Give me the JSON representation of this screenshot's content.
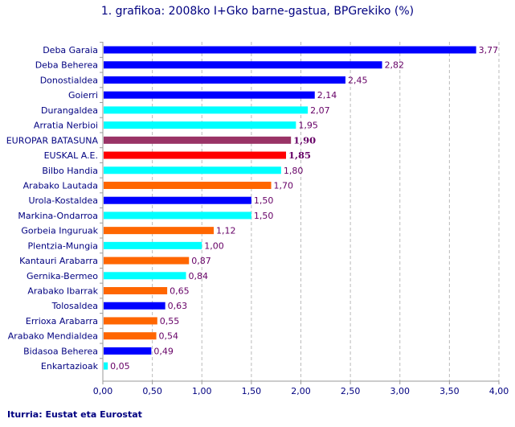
{
  "chart_data": {
    "type": "bar",
    "orientation": "horizontal",
    "title": "1. grafikoa: 2008ko I+Gko barne-gastua, BPGrekiko (%)",
    "source": "Iturria: Eustat eta Eurostat",
    "categories": [
      "Deba Garaia",
      "Deba Beherea",
      "Donostialdea",
      "Goierri",
      "Durangaldea",
      "Arratia Nerbioi",
      "EUROPAR BATASUNA",
      "EUSKAL A.E.",
      "Bilbo Handia",
      "Arabako Lautada",
      "Urola-Kostaldea",
      "Markina-Ondarroa",
      "Gorbeia Inguruak",
      "Plentzia-Mungia",
      "Kantauri Arabarra",
      "Gernika-Bermeo",
      "Arabako Ibarrak",
      "Tolosaldea",
      "Errioxa Arabarra",
      "Arabako Mendialdea",
      "Bidasoa Beherea",
      "Enkartazioak"
    ],
    "values": [
      3.77,
      2.82,
      2.45,
      2.14,
      2.07,
      1.95,
      1.9,
      1.85,
      1.8,
      1.7,
      1.5,
      1.5,
      1.12,
      1.0,
      0.87,
      0.84,
      0.65,
      0.63,
      0.55,
      0.54,
      0.49,
      0.05
    ],
    "value_labels": [
      "3,77",
      "2,82",
      "2,45",
      "2,14",
      "2,07",
      "1,95",
      "1,90",
      "1,85",
      "1,80",
      "1,70",
      "1,50",
      "1,50",
      "1,12",
      "1,00",
      "0,87",
      "0,84",
      "0,65",
      "0,63",
      "0,55",
      "0,54",
      "0,49",
      "0,05"
    ],
    "groups": [
      "gipuzkoa",
      "gipuzkoa",
      "gipuzkoa",
      "gipuzkoa",
      "bizkaia",
      "bizkaia",
      "eu",
      "cav",
      "bizkaia",
      "araba",
      "gipuzkoa",
      "bizkaia",
      "araba",
      "bizkaia",
      "araba",
      "bizkaia",
      "araba",
      "gipuzkoa",
      "araba",
      "araba",
      "gipuzkoa",
      "bizkaia"
    ],
    "colors": {
      "gipuzkoa": "#0000FF",
      "bizkaia": "#00FFFF",
      "araba": "#FF6600",
      "eu": "#993366",
      "cav": "#FF0000"
    },
    "bold_labels": [
      6,
      7
    ],
    "xlim": [
      0,
      4
    ],
    "xticks": [
      0,
      0.5,
      1,
      1.5,
      2,
      2.5,
      3,
      3.5,
      4
    ],
    "xtick_labels": [
      "0,00",
      "0,50",
      "1,00",
      "1,50",
      "2,00",
      "2,50",
      "3,00",
      "3,50",
      "4,00"
    ],
    "grid": true,
    "label_color": "#660066",
    "axis_text_color": "#000080"
  }
}
